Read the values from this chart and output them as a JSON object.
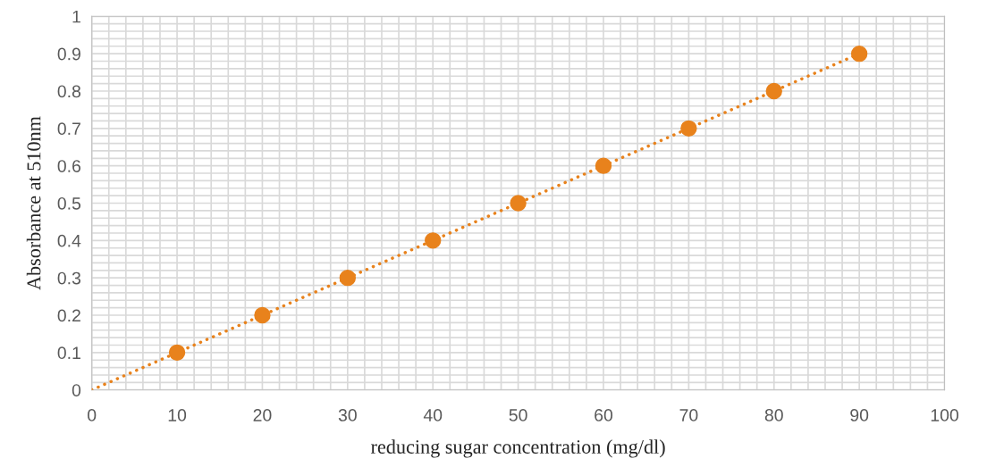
{
  "chart_data": {
    "type": "scatter",
    "xlabel": "reducing sugar concentration (mg/dl)",
    "ylabel": "Absorbance at 510nm",
    "series": [
      {
        "color": "#e8821c",
        "marker": "circle",
        "x": [
          10,
          20,
          30,
          40,
          50,
          60,
          70,
          80,
          90
        ],
        "values": [
          0.1,
          0.2,
          0.3,
          0.4,
          0.5,
          0.6,
          0.7,
          0.8,
          0.9
        ]
      },
      {
        "type": "line",
        "color": "#e8821c",
        "line_style": "dotted",
        "marker": "none",
        "x": [
          0,
          90
        ],
        "values": [
          0,
          0.9
        ]
      }
    ],
    "xlim": [
      0,
      100
    ],
    "xticks": [
      0,
      10,
      20,
      30,
      40,
      50,
      60,
      70,
      80,
      90,
      100
    ],
    "ylim": [
      0,
      1
    ],
    "yticks": [
      0,
      0.1,
      0.2,
      0.3,
      0.4,
      0.5,
      0.6,
      0.7,
      0.8,
      0.9,
      1
    ],
    "grid": true,
    "legend": false
  }
}
